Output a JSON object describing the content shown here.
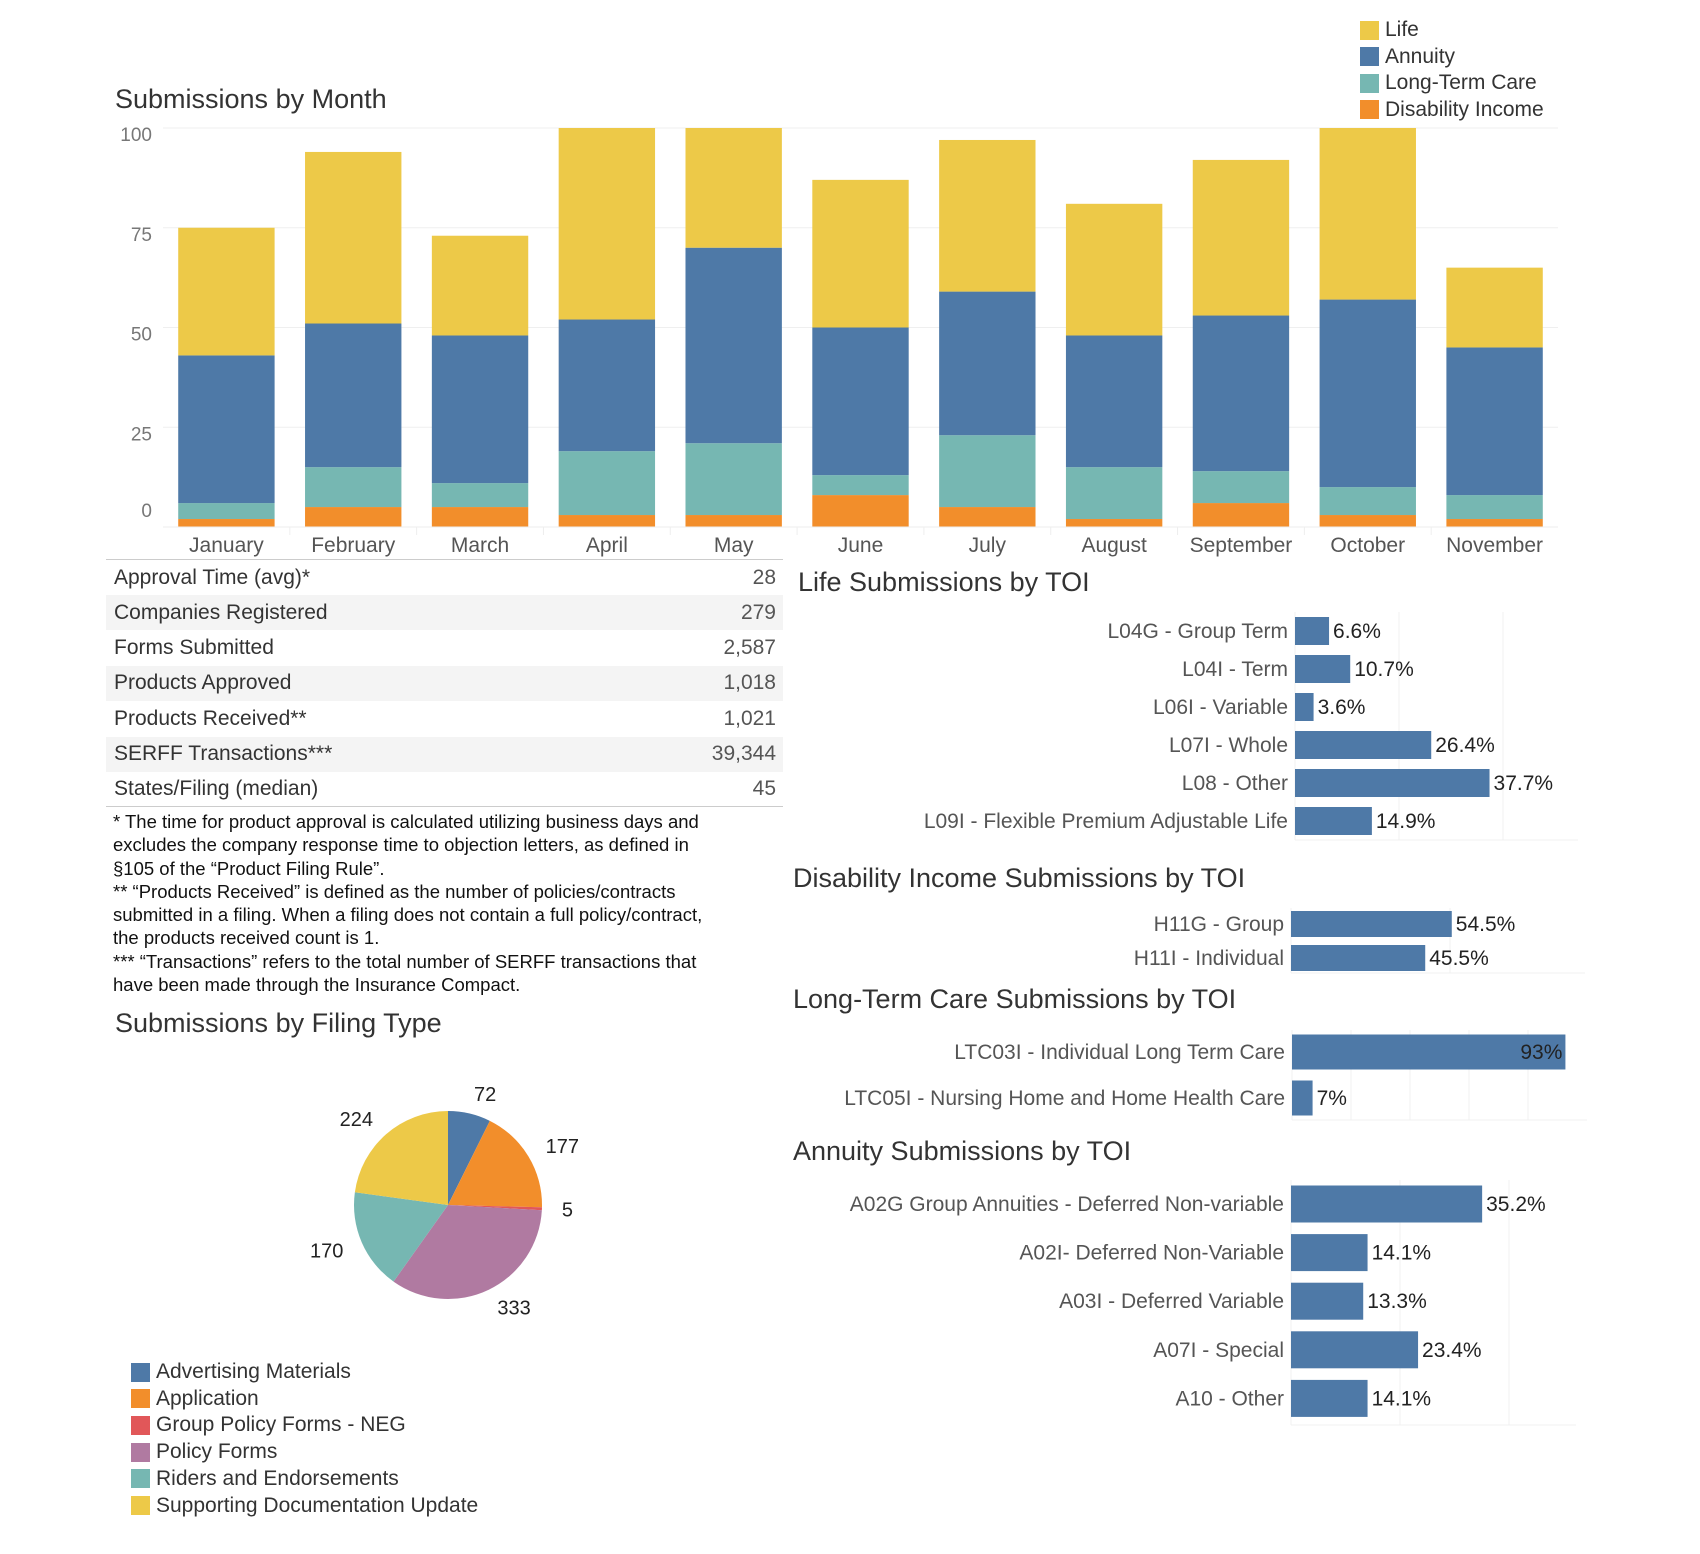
{
  "chart_data": [
    {
      "type": "bar",
      "stacked": true,
      "title": "Submissions by Month",
      "categories": [
        "January",
        "February",
        "March",
        "April",
        "May",
        "June",
        "July",
        "August",
        "September",
        "October",
        "November"
      ],
      "series": [
        {
          "name": "Disability Income",
          "color": "#F28E2B",
          "values": [
            2,
            5,
            5,
            3,
            3,
            8,
            5,
            2,
            6,
            3,
            2
          ]
        },
        {
          "name": "Long-Term Care",
          "color": "#76B7B2",
          "values": [
            4,
            10,
            6,
            16,
            18,
            5,
            18,
            13,
            8,
            7,
            6
          ]
        },
        {
          "name": "Annuity",
          "color": "#4E79A7",
          "values": [
            37,
            36,
            37,
            33,
            49,
            37,
            36,
            33,
            39,
            47,
            37
          ]
        },
        {
          "name": "Life",
          "color": "#EDC948",
          "values": [
            32,
            43,
            25,
            53,
            40,
            37,
            38,
            33,
            39,
            45,
            20
          ]
        }
      ],
      "yticks": [
        0,
        25,
        50,
        75,
        100
      ],
      "ylim": [
        0,
        102
      ],
      "grid": true,
      "legend_placement": "top-right",
      "legend_order": [
        "Life",
        "Annuity",
        "Long-Term Care",
        "Disability Income"
      ]
    },
    {
      "type": "bar",
      "orientation": "horizontal",
      "title": "Life Submissions by TOI",
      "categories": [
        "L04G - Group Term",
        "L04I - Term",
        "L06I - Variable",
        "L07I - Whole",
        "L08 - Other",
        "L09I - Flexible Premium Adjustable Life"
      ],
      "values": [
        6.6,
        10.7,
        3.6,
        26.4,
        37.7,
        14.9
      ],
      "labels": [
        "6.6%",
        "10.7%",
        "3.6%",
        "26.4%",
        "37.7%",
        "14.9%"
      ]
    },
    {
      "type": "bar",
      "orientation": "horizontal",
      "title": "Disability Income Submissions by TOI",
      "categories": [
        "H11G - Group",
        "H11I - Individual"
      ],
      "values": [
        54.5,
        45.5
      ],
      "labels": [
        "54.5%",
        "45.5%"
      ]
    },
    {
      "type": "bar",
      "orientation": "horizontal",
      "title": "Long-Term Care Submissions by TOI",
      "categories": [
        "LTC03I - Individual Long Term Care",
        "LTC05I  - Nursing Home and Home Health Care"
      ],
      "values": [
        93,
        7
      ],
      "labels": [
        "93%",
        "7%"
      ]
    },
    {
      "type": "bar",
      "orientation": "horizontal",
      "title": "Annuity Submissions by TOI",
      "categories": [
        "A02G Group Annuities - Deferred Non-variable",
        "A02I- Deferred Non-Variable",
        "A03I - Deferred Variable",
        "A07I - Special",
        "A10 - Other"
      ],
      "values": [
        35.2,
        14.1,
        13.3,
        23.4,
        14.1
      ],
      "labels": [
        "35.2%",
        "14.1%",
        "13.3%",
        "23.4%",
        "14.1%"
      ]
    },
    {
      "type": "pie",
      "title": "Submissions by Filing Type",
      "categories": [
        "Advertising Materials",
        "Application",
        "Group Policy Forms - NEG",
        "Policy Forms",
        "Riders and Endorsements",
        "Supporting Documentation Update"
      ],
      "values": [
        72,
        177,
        5,
        333,
        170,
        224
      ],
      "colors": [
        "#4E79A7",
        "#F28E2B",
        "#E15759",
        "#B07AA1",
        "#76B7B2",
        "#EDC948"
      ],
      "legend_placement": "bottom-left"
    }
  ],
  "kpis": [
    {
      "label": "Approval Time (avg)*",
      "value": "28"
    },
    {
      "label": "Companies Registered",
      "value": "279"
    },
    {
      "label": "Forms Submitted",
      "value": "2,587"
    },
    {
      "label": "Products Approved",
      "value": "1,018"
    },
    {
      "label": "Products Received**",
      "value": "1,021"
    },
    {
      "label": "SERFF Transactions***",
      "value": "39,344"
    },
    {
      "label": "States/Filing (median)",
      "value": "45"
    }
  ],
  "notes": [
    "* The time for product approval is calculated utilizing business days and",
    "excludes the company response time to objection letters, as defined in",
    "§105 of the “Product Filing Rule”.",
    "** “Products Received” is defined as the number of policies/contracts",
    "submitted in a filing. When a filing does not contain a full policy/contract,",
    "the products received count is 1.",
    "*** “Transactions” refers to the total number of SERFF transactions that",
    "have been made through the Insurance Compact."
  ]
}
